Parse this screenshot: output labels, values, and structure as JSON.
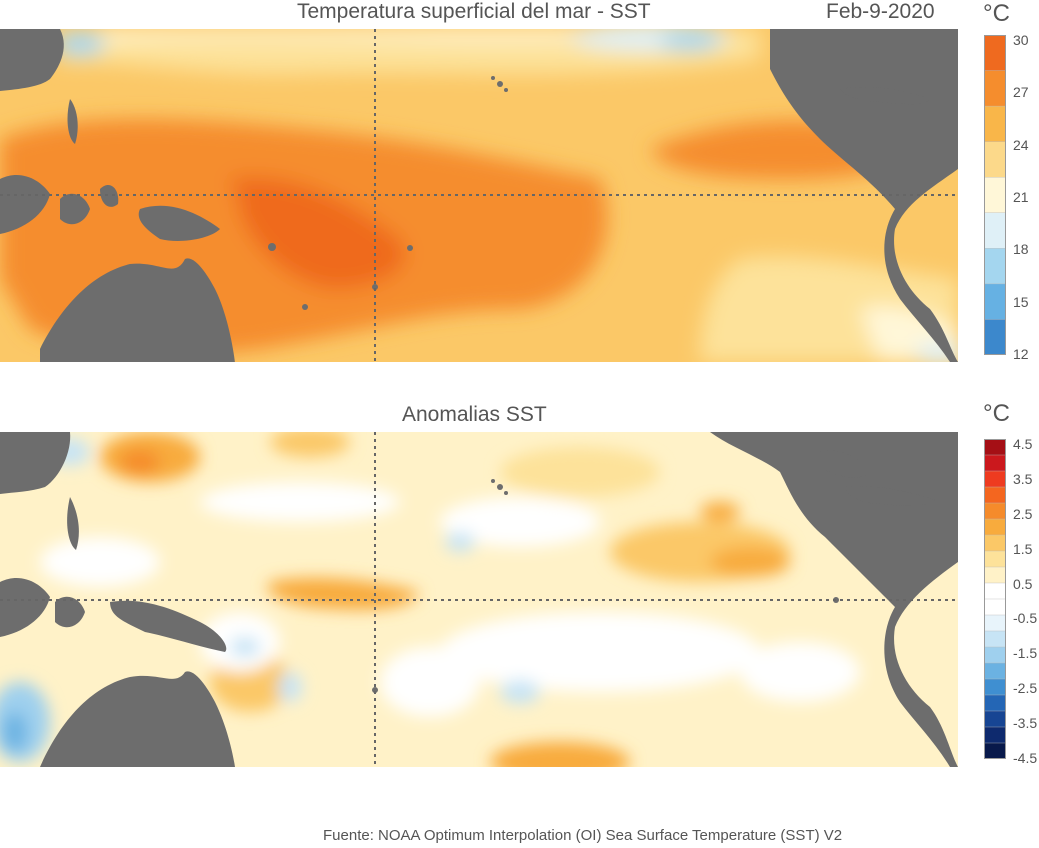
{
  "top_panel": {
    "title": "Temperatura superficial del mar - SST",
    "date": "Feb-9-2020",
    "unit": "°C",
    "colorbar": {
      "labels": [
        "30",
        "27",
        "24",
        "21",
        "18",
        "15",
        "12"
      ],
      "colors": [
        "#ef6a1f",
        "#f58d2d",
        "#f9b649",
        "#fcd98a",
        "#fff7d8",
        "#dff0f7",
        "#a4d6ef",
        "#66b1e3",
        "#3c88cc"
      ]
    }
  },
  "bottom_panel": {
    "title": "Anomalias SST",
    "unit": "°C",
    "colorbar": {
      "labels": [
        "4.5",
        "3.5",
        "2.5",
        "1.5",
        "0.5",
        "-0.5",
        "-1.5",
        "-2.5",
        "-3.5",
        "-4.5"
      ],
      "colors": [
        "#a50f15",
        "#cb181d",
        "#ee3b20",
        "#f4661f",
        "#f58b2b",
        "#f8ab3d",
        "#fbc867",
        "#fde29a",
        "#fff2c8",
        "#ffffff",
        "#ffffff",
        "#e8f4fb",
        "#c7e4f5",
        "#9fd0ee",
        "#6bb2e2",
        "#3f8fd1",
        "#2466b5",
        "#174593",
        "#0e2a6e",
        "#08194b"
      ]
    }
  },
  "footer": "Fuente: NOAA Optimum Interpolation (OI) Sea Surface Temperature (SST) V2",
  "map_colors": {
    "land": "#6d6d6d",
    "grid_line": "#666666"
  }
}
